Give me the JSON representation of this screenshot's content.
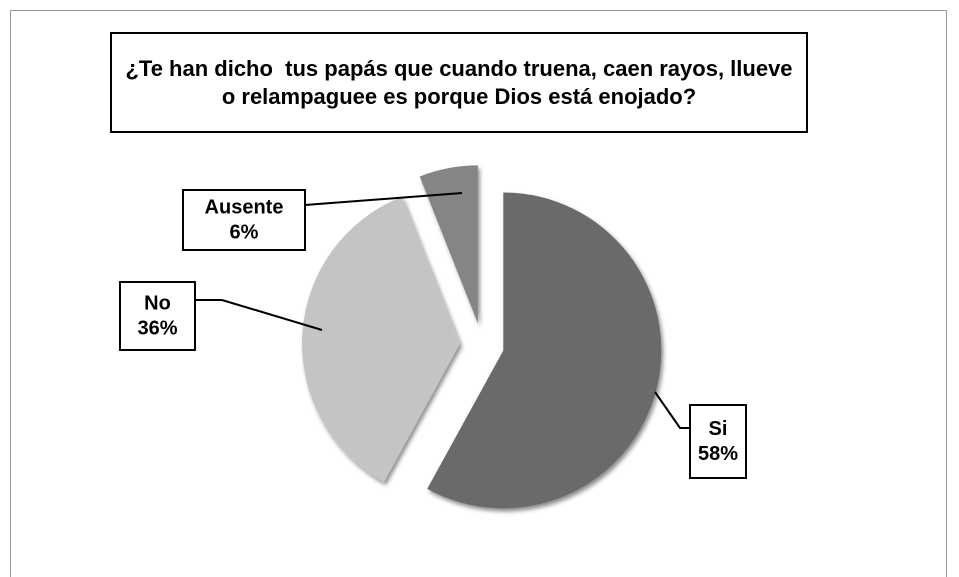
{
  "chart_data": {
    "type": "pie",
    "title": "¿Te han dicho  tus papás que cuando truena, caen rayos, llueve o relampaguee es porque Dios está enojado?",
    "categories": [
      "Si",
      "No",
      "Ausente"
    ],
    "values": [
      58,
      36,
      6
    ],
    "value_labels": [
      "58%",
      "36%",
      "6%"
    ],
    "colors": [
      "#6b6b6b",
      "#c4c4c4",
      "#858585"
    ]
  }
}
